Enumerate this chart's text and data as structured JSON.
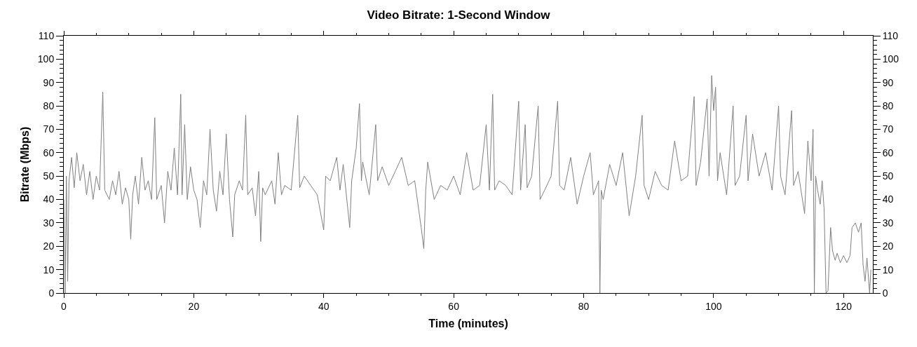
{
  "chart_data": {
    "type": "line",
    "title": "Video Bitrate: 1-Second Window",
    "xlabel": "Time (minutes)",
    "ylabel": "Bitrate (Mbps)",
    "xlim": [
      0,
      124.5
    ],
    "xticks": [
      0,
      20,
      40,
      60,
      80,
      100,
      120
    ],
    "ylim": [
      0,
      110
    ],
    "yticks": [
      0,
      10,
      20,
      30,
      40,
      50,
      60,
      70,
      80,
      90,
      100,
      110
    ],
    "y2lim": [
      0,
      110
    ],
    "y2ticks": [
      0,
      10,
      20,
      30,
      40,
      50,
      60,
      70,
      80,
      90,
      100,
      110
    ],
    "grid": false,
    "marker": "none",
    "line_style": "solid",
    "series": [
      {
        "color": "#808080",
        "x": [
          0,
          0.2,
          0.4,
          0.6,
          0.8,
          1.2,
          1.6,
          2,
          2.5,
          3,
          3.5,
          4,
          4.5,
          5,
          5.5,
          6,
          6.3,
          7,
          7.5,
          8,
          8.5,
          9,
          9.5,
          10,
          10.3,
          10.6,
          11,
          11.5,
          12,
          12.5,
          13,
          13.5,
          14,
          14.3,
          15,
          15.5,
          16,
          16.5,
          17,
          17.5,
          18,
          18.2,
          18.6,
          19,
          19.5,
          20,
          20.5,
          21,
          21.5,
          22,
          22.5,
          23,
          23.5,
          24,
          24.5,
          25,
          25.5,
          26,
          26.3,
          27,
          27.5,
          28,
          28.3,
          29,
          29.5,
          30,
          30.3,
          30.6,
          31,
          32,
          32.5,
          33,
          33.5,
          34,
          35,
          36,
          36.3,
          37,
          38,
          39,
          40,
          40.3,
          41,
          42,
          42.5,
          43,
          44,
          44.3,
          45,
          45.5,
          45.8,
          46,
          47,
          48,
          48.3,
          49,
          50,
          51,
          52,
          53,
          54,
          55,
          55.4,
          55.7,
          56,
          57,
          58,
          59,
          60,
          61,
          62,
          63,
          64,
          65,
          65.5,
          66,
          66.3,
          67,
          68,
          69,
          70,
          70.3,
          71,
          71.3,
          72,
          73,
          73.3,
          74,
          75,
          76,
          76.3,
          77,
          78,
          79,
          80,
          81,
          81.5,
          82.3,
          82.5,
          82.7,
          83,
          84,
          85,
          86,
          87,
          88,
          89,
          89.3,
          90,
          91,
          92,
          93,
          94,
          95,
          96,
          97,
          97.3,
          98,
          99,
          99.3,
          99.7,
          100,
          100.3,
          100.6,
          101,
          102,
          103,
          103.3,
          104,
          105,
          105.3,
          106,
          107,
          108,
          109,
          110,
          110.3,
          111,
          112,
          112.3,
          113,
          114,
          114.5,
          115,
          115.3,
          115.5,
          115.7,
          116,
          116.4,
          116.7,
          117,
          117.3,
          117.6,
          118,
          118.3,
          118.7,
          119,
          119.5,
          120,
          120.5,
          121,
          121.3,
          121.8,
          122.3,
          122.7,
          123,
          123.3,
          123.6,
          124,
          124.2
        ],
        "values": [
          40,
          0,
          50,
          5,
          48,
          58,
          45,
          60,
          48,
          55,
          42,
          52,
          40,
          50,
          44,
          86,
          44,
          40,
          48,
          42,
          52,
          38,
          45,
          40,
          23,
          42,
          50,
          38,
          58,
          44,
          48,
          40,
          75,
          40,
          46,
          30,
          52,
          44,
          62,
          42,
          85,
          42,
          72,
          40,
          54,
          44,
          40,
          28,
          48,
          42,
          70,
          44,
          35,
          52,
          42,
          68,
          40,
          24,
          42,
          48,
          44,
          76,
          42,
          45,
          33,
          52,
          22,
          45,
          42,
          48,
          38,
          60,
          42,
          46,
          44,
          76,
          45,
          50,
          46,
          42,
          27,
          50,
          48,
          58,
          44,
          55,
          28,
          48,
          62,
          81,
          48,
          56,
          42,
          72,
          48,
          54,
          46,
          52,
          58,
          46,
          48,
          28,
          19,
          44,
          56,
          40,
          46,
          44,
          50,
          42,
          60,
          44,
          46,
          72,
          44,
          85,
          44,
          48,
          46,
          42,
          82,
          44,
          72,
          45,
          50,
          80,
          40,
          44,
          50,
          82,
          46,
          44,
          58,
          38,
          50,
          60,
          42,
          48,
          0,
          44,
          40,
          55,
          46,
          60,
          33,
          50,
          76,
          46,
          40,
          52,
          46,
          44,
          65,
          48,
          50,
          84,
          46,
          56,
          83,
          50,
          93,
          78,
          88,
          48,
          60,
          42,
          80,
          46,
          50,
          76,
          48,
          68,
          50,
          60,
          44,
          80,
          50,
          42,
          78,
          46,
          52,
          34,
          65,
          48,
          70,
          0,
          50,
          44,
          38,
          48,
          36,
          0,
          1,
          28,
          18,
          14,
          17,
          13,
          16,
          13,
          16,
          28,
          30,
          26,
          30,
          12,
          5,
          15,
          0,
          10
        ]
      }
    ]
  }
}
